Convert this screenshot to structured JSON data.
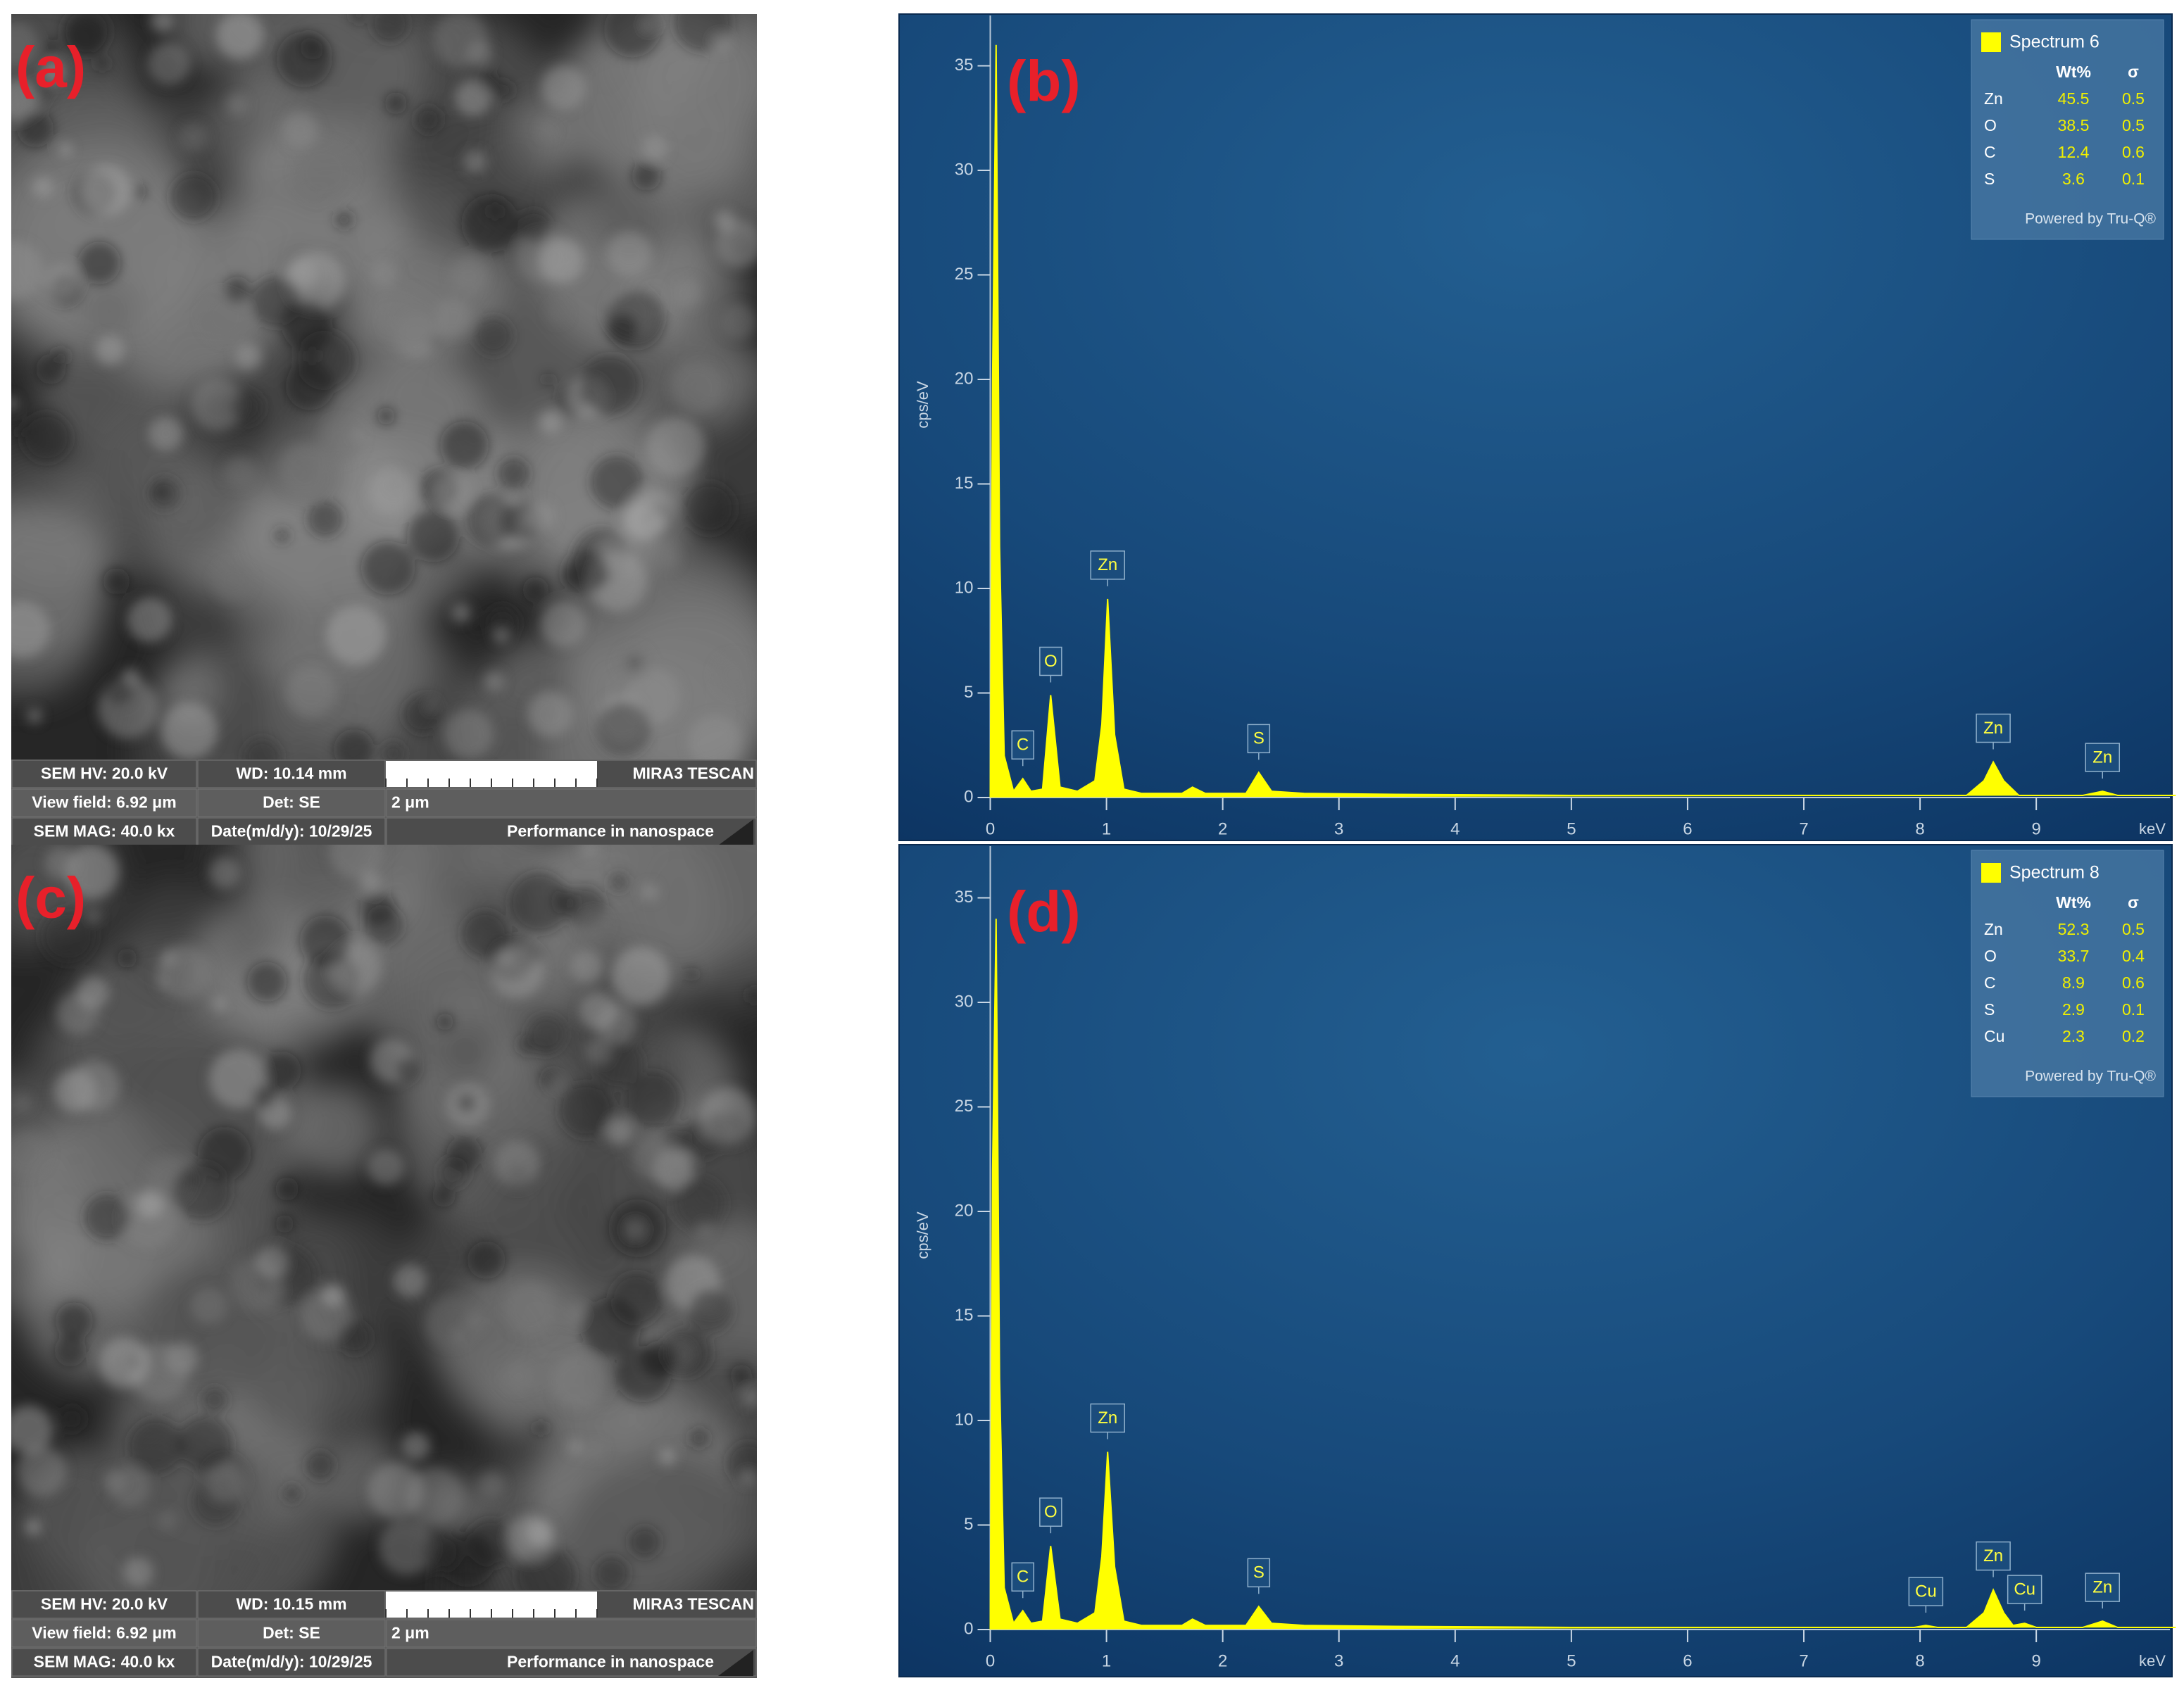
{
  "sem_panels": [
    {
      "label": "(a)",
      "info": {
        "hv": "SEM HV: 20.0 kV",
        "wd": "WD: 10.14 mm",
        "brand": "MIRA3 TESCAN",
        "view_field": "View field: 6.92 μm",
        "det": "Det: SE",
        "scale": "2 μm",
        "mag": "SEM MAG: 40.0 kx",
        "date": "Date(m/d/y): 10/29/25",
        "slogan": "Performance in nanospace"
      }
    },
    {
      "label": "(c)",
      "info": {
        "hv": "SEM HV: 20.0 kV",
        "wd": "WD: 10.15 mm",
        "brand": "MIRA3 TESCAN",
        "view_field": "View field: 6.92 μm",
        "det": "Det: SE",
        "scale": "2 μm",
        "mag": "SEM MAG: 40.0 kx",
        "date": "Date(m/d/y): 10/29/25",
        "slogan": "Performance in nanospace"
      }
    }
  ],
  "chart_data": [
    {
      "type": "area",
      "panel_label": "(b)",
      "ylabel": "cps/eV",
      "xlabel": "keV",
      "color": "#ffff00",
      "x": [
        0,
        0.02,
        0.05,
        0.08,
        0.12,
        0.2,
        0.28,
        0.35,
        0.45,
        0.52,
        0.6,
        0.75,
        0.9,
        0.96,
        1.01,
        1.07,
        1.15,
        1.3,
        1.65,
        1.74,
        1.85,
        2.2,
        2.31,
        2.42,
        2.7,
        3.5,
        5,
        7,
        8.4,
        8.55,
        8.63,
        8.72,
        8.85,
        9.4,
        9.57,
        9.7,
        10.2
      ],
      "values": [
        0,
        20,
        36,
        12,
        2,
        0.3,
        0.9,
        0.3,
        0.4,
        4.9,
        0.5,
        0.3,
        0.8,
        3.5,
        9.5,
        3,
        0.4,
        0.2,
        0.2,
        0.5,
        0.2,
        0.2,
        1.2,
        0.3,
        0.2,
        0.15,
        0.1,
        0.1,
        0.1,
        0.8,
        1.7,
        0.8,
        0.1,
        0.1,
        0.3,
        0.1,
        0.1
      ],
      "xlim": [
        -0.1,
        10.15
      ],
      "ylim": [
        0,
        37.3
      ],
      "xticks": [
        0,
        1,
        2,
        3,
        4,
        5,
        6,
        7,
        8,
        9
      ],
      "yticks": [
        0,
        5,
        10,
        15,
        20,
        25,
        30,
        35
      ],
      "peak_labels": [
        {
          "text": "C",
          "energy": 0.28
        },
        {
          "text": "O",
          "energy": 0.52
        },
        {
          "text": "Zn",
          "energy": 1.01
        },
        {
          "text": "S",
          "energy": 2.31
        },
        {
          "text": "Zn",
          "energy": 8.63
        },
        {
          "text": "Zn",
          "energy": 9.57
        }
      ],
      "legend_table": {
        "title": "Spectrum 6",
        "columns": [
          "Wt%",
          "σ"
        ],
        "rows": [
          [
            "Zn",
            45.5,
            0.5
          ],
          [
            "O",
            38.5,
            0.5
          ],
          [
            "C",
            12.4,
            0.6
          ],
          [
            "S",
            3.6,
            0.1
          ]
        ],
        "footer": "Powered by Tru-Q®"
      }
    },
    {
      "type": "area",
      "panel_label": "(d)",
      "ylabel": "cps/eV",
      "xlabel": "keV",
      "color": "#ffff00",
      "x": [
        0,
        0.02,
        0.05,
        0.08,
        0.12,
        0.2,
        0.28,
        0.35,
        0.45,
        0.52,
        0.6,
        0.75,
        0.9,
        0.96,
        1.01,
        1.07,
        1.15,
        1.3,
        1.65,
        1.74,
        1.85,
        2.2,
        2.31,
        2.42,
        2.7,
        3.5,
        5,
        7,
        7.95,
        8.05,
        8.15,
        8.4,
        8.55,
        8.63,
        8.72,
        8.8,
        8.9,
        9.0,
        9.4,
        9.57,
        9.7,
        10.2
      ],
      "values": [
        0,
        22,
        34,
        12,
        2,
        0.3,
        0.9,
        0.3,
        0.4,
        4,
        0.5,
        0.3,
        0.8,
        3.5,
        8.5,
        3,
        0.4,
        0.2,
        0.2,
        0.5,
        0.2,
        0.2,
        1.1,
        0.3,
        0.2,
        0.15,
        0.1,
        0.1,
        0.1,
        0.2,
        0.1,
        0.1,
        0.8,
        1.9,
        0.8,
        0.2,
        0.3,
        0.1,
        0.1,
        0.4,
        0.1,
        0.1
      ],
      "xlim": [
        -0.1,
        10.15
      ],
      "ylim": [
        0,
        37.3
      ],
      "xticks": [
        0,
        1,
        2,
        3,
        4,
        5,
        6,
        7,
        8,
        9
      ],
      "yticks": [
        0,
        5,
        10,
        15,
        20,
        25,
        30,
        35
      ],
      "peak_labels": [
        {
          "text": "C",
          "energy": 0.28
        },
        {
          "text": "O",
          "energy": 0.52
        },
        {
          "text": "Zn",
          "energy": 1.01
        },
        {
          "text": "S",
          "energy": 2.31
        },
        {
          "text": "Cu",
          "energy": 8.05
        },
        {
          "text": "Zn",
          "energy": 8.63
        },
        {
          "text": "Cu",
          "energy": 8.9
        },
        {
          "text": "Zn",
          "energy": 9.57
        }
      ],
      "legend_table": {
        "title": "Spectrum 8",
        "columns": [
          "Wt%",
          "σ"
        ],
        "rows": [
          [
            "Zn",
            52.3,
            0.5
          ],
          [
            "O",
            33.7,
            0.4
          ],
          [
            "C",
            8.9,
            0.6
          ],
          [
            "S",
            2.9,
            0.1
          ],
          [
            "Cu",
            2.3,
            0.2
          ]
        ],
        "footer": "Powered by Tru-Q®"
      }
    }
  ]
}
